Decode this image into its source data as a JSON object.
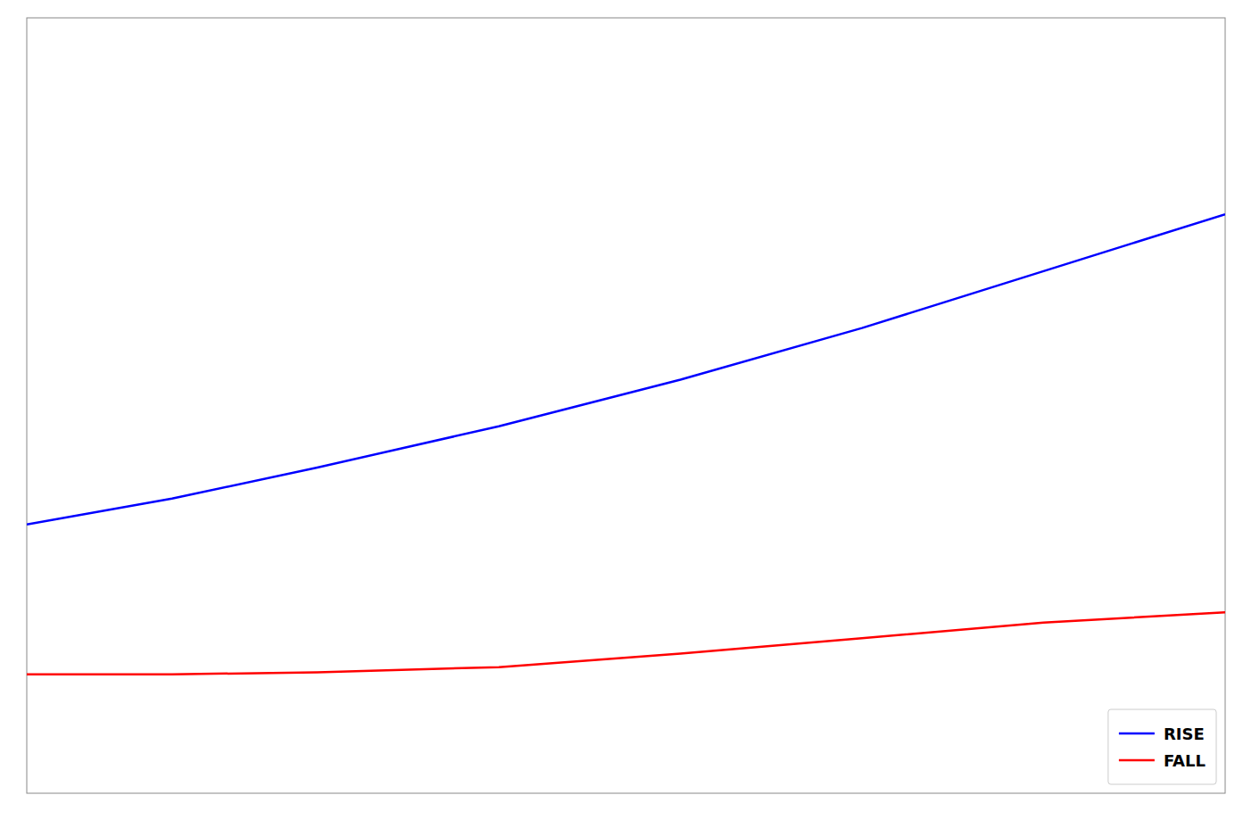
{
  "chart_data": {
    "type": "line",
    "x": [
      -40,
      -20,
      0,
      25,
      50,
      75,
      100,
      125
    ],
    "series": [
      {
        "name": "RISE",
        "color": "#0000ff",
        "values": [
          6.1,
          6.35,
          6.65,
          7.05,
          7.5,
          8.0,
          8.55,
          9.1
        ]
      },
      {
        "name": "FALL",
        "color": "#ff0000",
        "values": [
          4.65,
          4.65,
          4.67,
          4.72,
          4.85,
          5.0,
          5.15,
          5.25
        ]
      }
    ],
    "xlim": [
      -40,
      125
    ],
    "ylim": [
      3.5,
      11.0
    ],
    "tick_labels": false,
    "grid": false,
    "legend": "lower right"
  }
}
